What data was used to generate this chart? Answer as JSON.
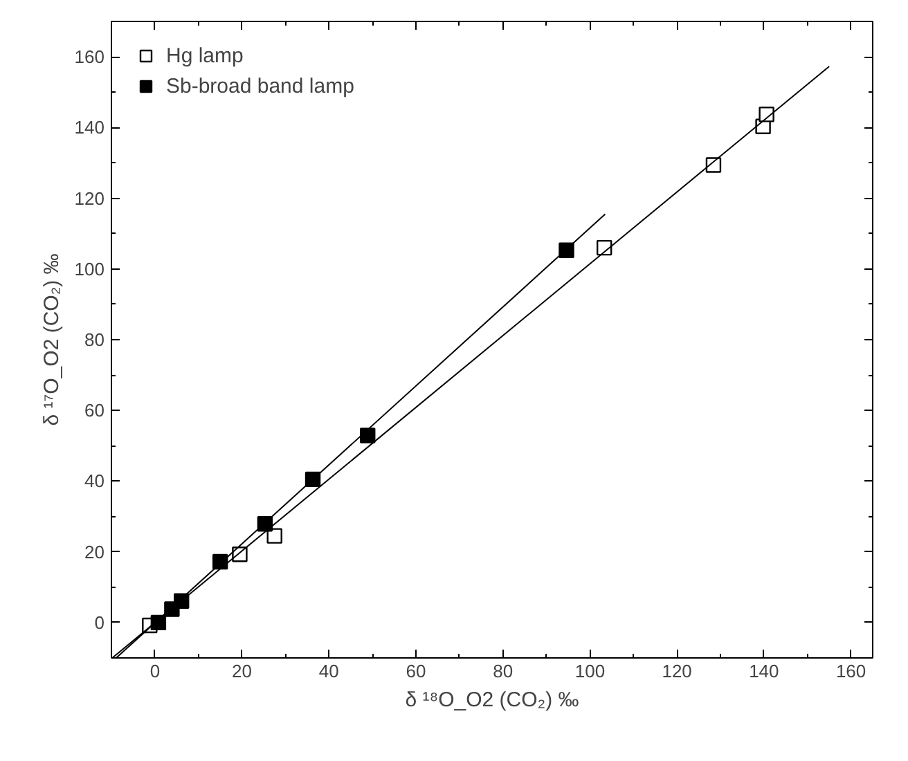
{
  "chart_data": {
    "type": "scatter",
    "xlabel": "δ ¹⁸O_O2 (CO₂) ‰",
    "ylabel": "δ ¹⁷O_O2 (CO₂) ‰",
    "xlim": [
      -10,
      165
    ],
    "ylim": [
      -10,
      170
    ],
    "xticks": [
      0,
      20,
      40,
      60,
      80,
      100,
      120,
      140,
      160
    ],
    "yticks": [
      0,
      20,
      40,
      60,
      80,
      100,
      120,
      140,
      160
    ],
    "grid": false,
    "legend": "top left",
    "series": [
      {
        "name": "Hg lamp",
        "color": "#ffffff",
        "marker": "square",
        "x": [
          -1.2,
          19.5,
          27.5,
          103.3,
          128.4,
          139.8,
          140.6
        ],
        "values": [
          -0.8,
          19.3,
          24.5,
          106,
          129.4,
          140.3,
          143.7
        ]
      },
      {
        "name": "Sb-broad band lamp",
        "color": "#000000",
        "marker": "square",
        "x": [
          0.8,
          3.9,
          6.1,
          15,
          25.3,
          36.3,
          48.9,
          94.6
        ],
        "values": [
          0,
          3.8,
          6.1,
          17.2,
          27.9,
          40.5,
          52.9,
          105.3
        ]
      },
      {
        "type": "line",
        "color": "#000000",
        "marker": "none",
        "x": [
          -9.8,
          155
        ],
        "values": [
          -10,
          157.3
        ]
      },
      {
        "type": "line",
        "color": "#000000",
        "marker": "none",
        "x": [
          -8.9,
          103.5
        ],
        "values": [
          -10,
          115.5
        ]
      }
    ]
  }
}
